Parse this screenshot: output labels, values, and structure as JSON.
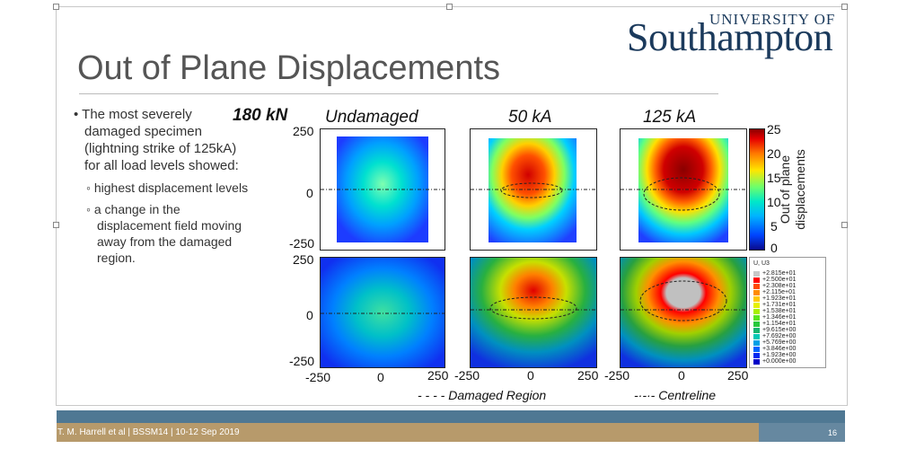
{
  "logo": {
    "top": "UNIVERSITY OF",
    "main": "Southampton"
  },
  "title": "Out of Plane Displacements",
  "bullets": {
    "main": "The most severely damaged specimen (lightning strike of 125kA) for all load levels showed:",
    "sub1": "highest displacement levels",
    "sub2": "a change in the displacement field moving away from the damaged region."
  },
  "figure": {
    "load_label": "180 kN",
    "col_labels": [
      "Undamaged",
      "50 kA",
      "125 kA"
    ],
    "y_ticks_top": [
      "250",
      "0",
      "-250"
    ],
    "y_ticks_bottom": [
      "250",
      "0",
      "-250"
    ],
    "x_ticks": [
      "-250",
      "0",
      "250",
      "-250",
      "0",
      "250",
      "-250",
      "0",
      "250"
    ],
    "colorbar_ticks": [
      "25",
      "20",
      "15",
      "10",
      "5",
      "0"
    ],
    "colorbar_title_line1": "Out of plane",
    "colorbar_title_line2": "displacements",
    "legend_title": "U, U3",
    "legend_values": [
      "+2.815e+01",
      "+2.500e+01",
      "+2.308e+01",
      "+2.115e+01",
      "+1.923e+01",
      "+1.731e+01",
      "+1.538e+01",
      "+1.346e+01",
      "+1.154e+01",
      "+9.615e+00",
      "+7.692e+00",
      "+5.769e+00",
      "+3.846e+00",
      "+1.923e+00",
      "+0.000e+00"
    ],
    "legend_colors": [
      "#c8c8c8",
      "#ff0000",
      "#ff4800",
      "#ff8c00",
      "#ffc800",
      "#e6f000",
      "#a8f000",
      "#5ae61e",
      "#28c83c",
      "#14b46e",
      "#00c8b4",
      "#00a0e6",
      "#0064ff",
      "#0028f0",
      "#0000c8"
    ],
    "caption_damaged": "Damaged Region",
    "caption_centre": "Centreline"
  },
  "footer": {
    "text": "T. M. Harrell et al | BSSM14 | 10-12 Sep 2019",
    "page": "16"
  }
}
